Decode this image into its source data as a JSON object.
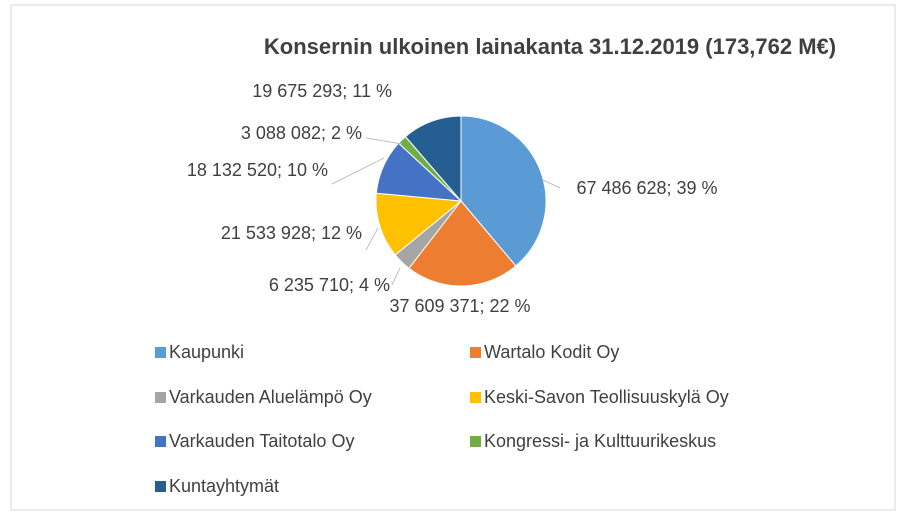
{
  "chart_data": {
    "type": "pie",
    "title": "Konsernin ulkoinen lainakanta 31.12.2019 (173,762 M€)",
    "categories": [
      "Kaupunki",
      "Wartalo Kodit Oy",
      "Varkauden Aluelämpö Oy",
      "Keski-Savon Teollisuuskylä Oy",
      "Varkauden Taitotalo Oy",
      "Kongressi- ja Kulttuurikeskus",
      "Kuntayhtymät"
    ],
    "values": [
      67486628,
      37609371,
      6235710,
      21533928,
      18132520,
      3088082,
      19675293
    ],
    "value_labels": [
      "67 486 628; 39 %",
      "37 609 371; 22 %",
      "6 235 710; 4 %",
      "21 533 928; 12 %",
      "18 132 520; 10 %",
      "3 088 082; 2 %",
      "19 675 293; 11 %"
    ],
    "colors": [
      "#5b9bd5",
      "#ed7d31",
      "#a5a5a5",
      "#ffc000",
      "#4472c4",
      "#70ad47",
      "#255e91"
    ]
  }
}
